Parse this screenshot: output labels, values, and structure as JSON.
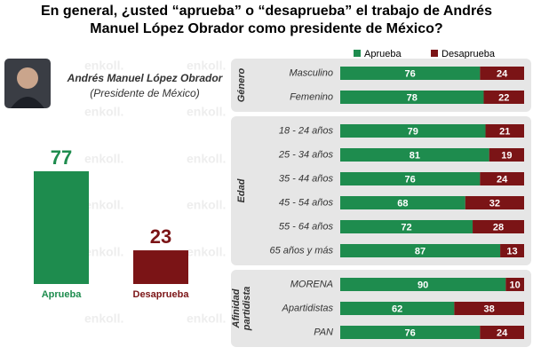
{
  "title": [
    "En general, ¿usted “aprueba” o “desaprueba” el trabajo de Andrés",
    "Manuel López Obrador como presidente de México?"
  ],
  "person": {
    "name": "Andrés Manuel López Obrador",
    "role": "(Presidente de México)"
  },
  "watermark": "enkoll.",
  "chart_data": [
    {
      "type": "bar",
      "categories": [
        "Aprueba",
        "Desaprueba"
      ],
      "values": [
        77,
        23
      ],
      "colors": [
        "#1e8c4e",
        "#7b1416"
      ],
      "ylim": [
        0,
        100
      ]
    },
    {
      "type": "stacked_bar_h",
      "xlim": [
        0,
        100
      ],
      "series": [
        {
          "name": "Aprueba",
          "color": "#1e8c4e",
          "values": [
            76,
            78,
            79,
            81,
            76,
            68,
            72,
            87,
            90,
            62,
            76
          ]
        },
        {
          "name": "Desaprueba",
          "color": "#7b1416",
          "values": [
            24,
            22,
            21,
            19,
            24,
            32,
            28,
            13,
            10,
            38,
            24
          ]
        }
      ],
      "groups": [
        {
          "label": [
            "Género"
          ],
          "categories": [
            "Masculino",
            "Femenino"
          ]
        },
        {
          "label": [
            "Edad"
          ],
          "categories": [
            "18 - 24 años",
            "25 - 34 años",
            "35 - 44 años",
            "45 - 54 años",
            "55 - 64 años",
            "65 años y más"
          ]
        },
        {
          "label": [
            "Afinidad",
            "partidista"
          ],
          "categories": [
            "MORENA",
            "Apartidistas",
            "PAN"
          ]
        }
      ]
    }
  ]
}
